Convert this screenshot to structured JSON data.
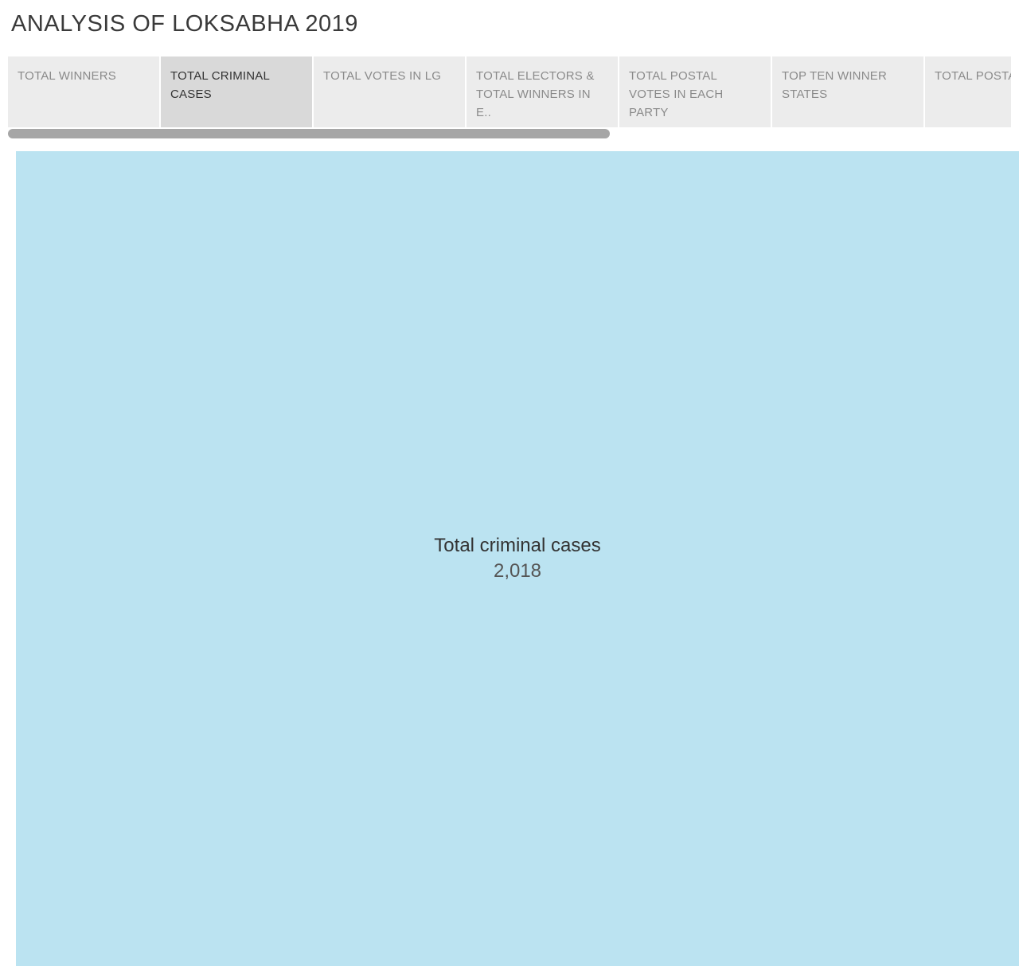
{
  "dashboard": {
    "title": "ANALYSIS OF LOKSABHA 2019"
  },
  "tabs": [
    {
      "label": "TOTAL WINNERS",
      "active": false
    },
    {
      "label": "TOTAL CRIMINAL CASES",
      "active": true
    },
    {
      "label": "TOTAL  VOTES IN LG",
      "active": false
    },
    {
      "label": " TOTAL ELECTORS & TOTAL WINNERS IN E..",
      "active": false
    },
    {
      "label": "TOTAL POSTAL VOTES IN EACH PARTY",
      "active": false
    },
    {
      "label": "TOP  TEN WINNER STATES",
      "active": false
    },
    {
      "label": "TOTAL POSTAL VOT..",
      "active": false
    }
  ],
  "tab_scrollbar": {
    "visible_fraction": 0.6
  },
  "chart_data": {
    "type": "treemap",
    "colors": {
      "mark": "#bbe3f1"
    },
    "marks": [
      {
        "label": "Total criminal cases",
        "value": 2018,
        "display_value": "2,018"
      }
    ]
  }
}
